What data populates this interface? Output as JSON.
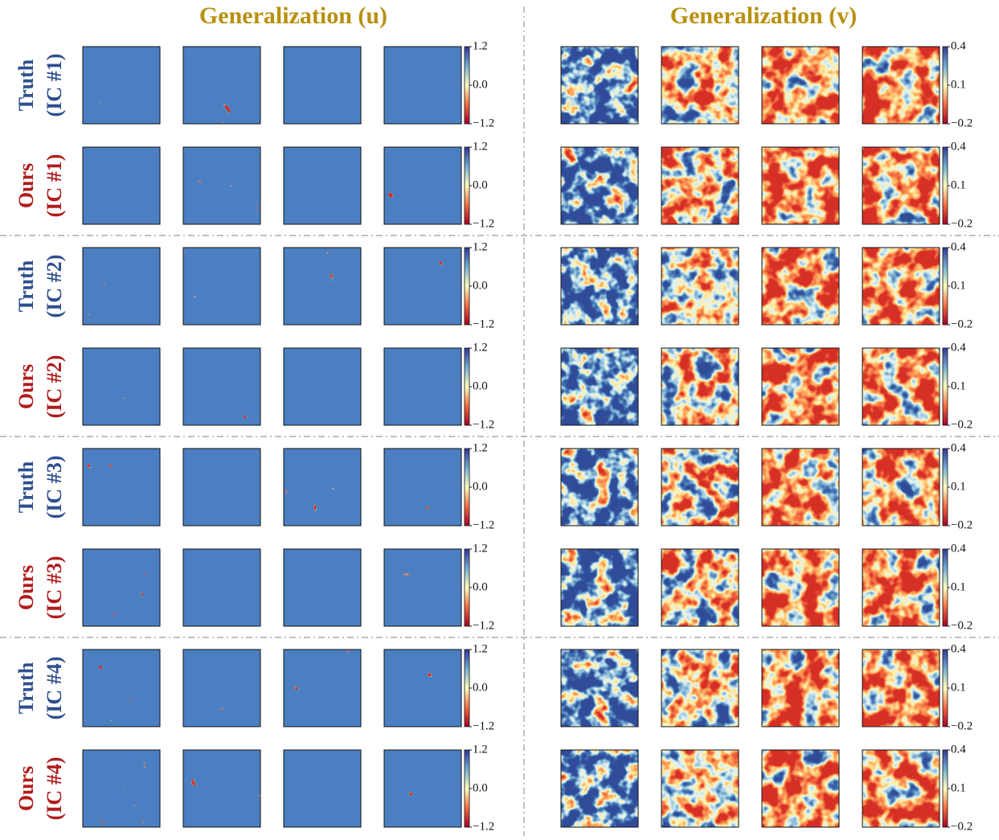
{
  "titles": [
    "Generalization (u)",
    "Generalization (v)"
  ],
  "rows": [
    {
      "name": "Truth",
      "ic": "(IC #1)"
    },
    {
      "name": "Ours",
      "ic": "(IC #1)"
    },
    {
      "name": "Truth",
      "ic": "(IC #2)"
    },
    {
      "name": "Ours",
      "ic": "(IC #2)"
    },
    {
      "name": "Truth",
      "ic": "(IC #3)"
    },
    {
      "name": "Ours",
      "ic": "(IC #3)"
    },
    {
      "name": "Truth",
      "ic": "(IC #4)"
    },
    {
      "name": "Ours",
      "ic": "(IC #4)"
    }
  ],
  "colorbars": [
    {
      "lim": [
        -1.2,
        1.2
      ],
      "ticks": [
        1.2,
        {
          "value": 0,
          "label": "0.0"
        },
        {
          "value": -1.2,
          "label": "−1.2"
        }
      ]
    },
    {
      "lim": [
        -0.2,
        0.4
      ],
      "ticks": [
        0.4,
        0.1,
        {
          "value": -0.2,
          "label": "−0.2"
        }
      ]
    }
  ]
}
